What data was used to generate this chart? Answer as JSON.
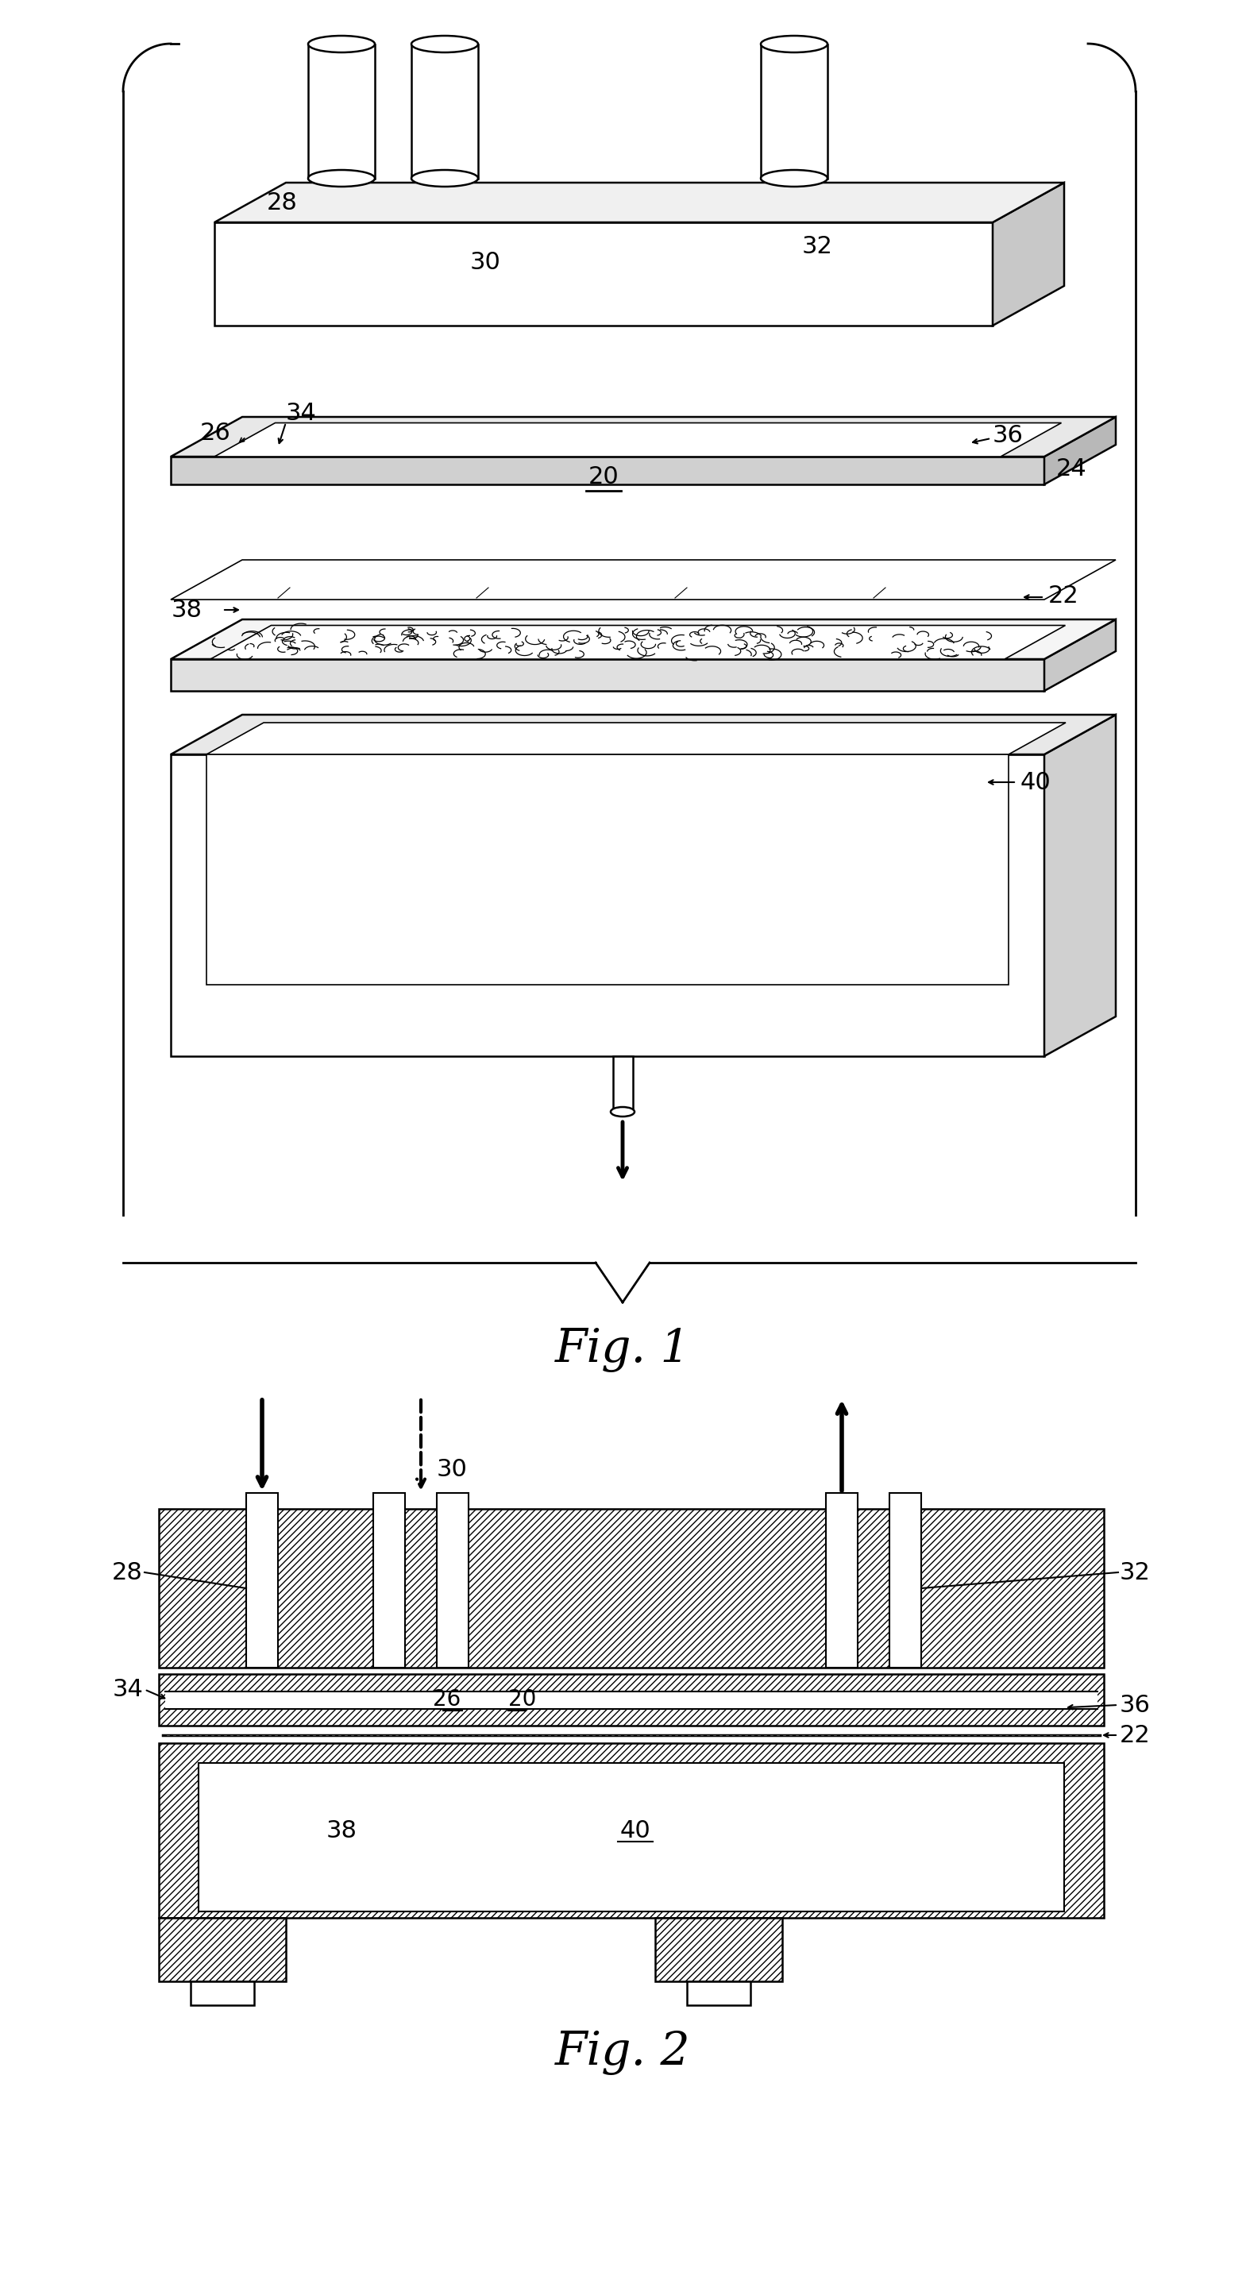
{
  "fig1_label": "Fig. 1",
  "fig2_label": "Fig. 2",
  "bg_color": "#ffffff",
  "line_color": "#000000"
}
